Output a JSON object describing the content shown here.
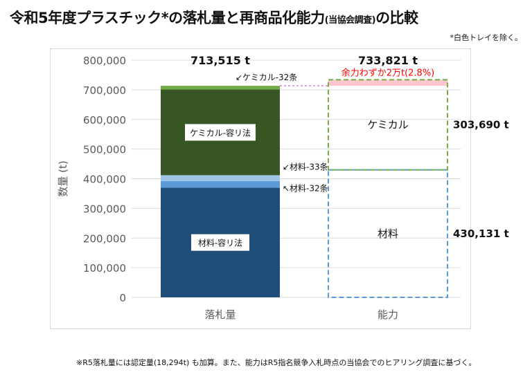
{
  "title": {
    "main": "令和5年度プラスチック*の落札量と再商品化能力",
    "sub": "(当協会調査)",
    "tail": "の比較"
  },
  "note_top": "*白色トレイを除く。",
  "footnote": "※R5落札量には認定量(18,294t) も加算。また、能力はR5指名競争入札時点の当協会でのヒアリング調査に基づく。",
  "colors": {
    "material_main": "#1f4e79",
    "material_33": "#9dc3e6",
    "material_32": "#5b9bd5",
    "chemical_main": "#375623",
    "chemical_32": "#70ad47",
    "capacity_chemical_border": "#70ad47",
    "capacity_material_border": "#5b9bd5",
    "spare": "#ffc7ce",
    "spare_text": "#ff0000",
    "grid": "#d9d9d9",
    "axis_text": "#595959",
    "dotted_link": "#c55ab5"
  },
  "chart_data": {
    "type": "bar",
    "stacked": true,
    "ylabel": "数量 (t)",
    "ylim": [
      0,
      800000
    ],
    "yticks": [
      "0",
      "100,000",
      "200,000",
      "300,000",
      "400,000",
      "500,000",
      "600,000",
      "700,000",
      "800,000"
    ],
    "ytick_values": [
      0,
      100000,
      200000,
      300000,
      400000,
      500000,
      600000,
      700000,
      800000
    ],
    "categories": [
      "落札量",
      "能力"
    ],
    "totals": [
      "713,515 t",
      "733,821 t"
    ],
    "grid": true,
    "series_bid": [
      {
        "key": "material_main",
        "label": "材料-容リ法",
        "value": 370000
      },
      {
        "key": "material_32",
        "label": "材料-32条",
        "value": 22000
      },
      {
        "key": "material_33",
        "label": "材料-33条",
        "value": 20000
      },
      {
        "key": "chemical_main",
        "label": "ケミカル-容リ法",
        "value": 289000
      },
      {
        "key": "chemical_32",
        "label": "ケミカル-32条",
        "value": 12515
      }
    ],
    "series_capacity": [
      {
        "key": "material",
        "label": "材料",
        "value": 430131,
        "value_label": "430,131 t"
      },
      {
        "key": "chemical",
        "label": "ケミカル",
        "value": 303690,
        "value_label": "303,690 t"
      }
    ],
    "spare_capacity": {
      "label": "余力わずか2万t(2.8%)",
      "from": 713515,
      "to": 733821
    }
  }
}
